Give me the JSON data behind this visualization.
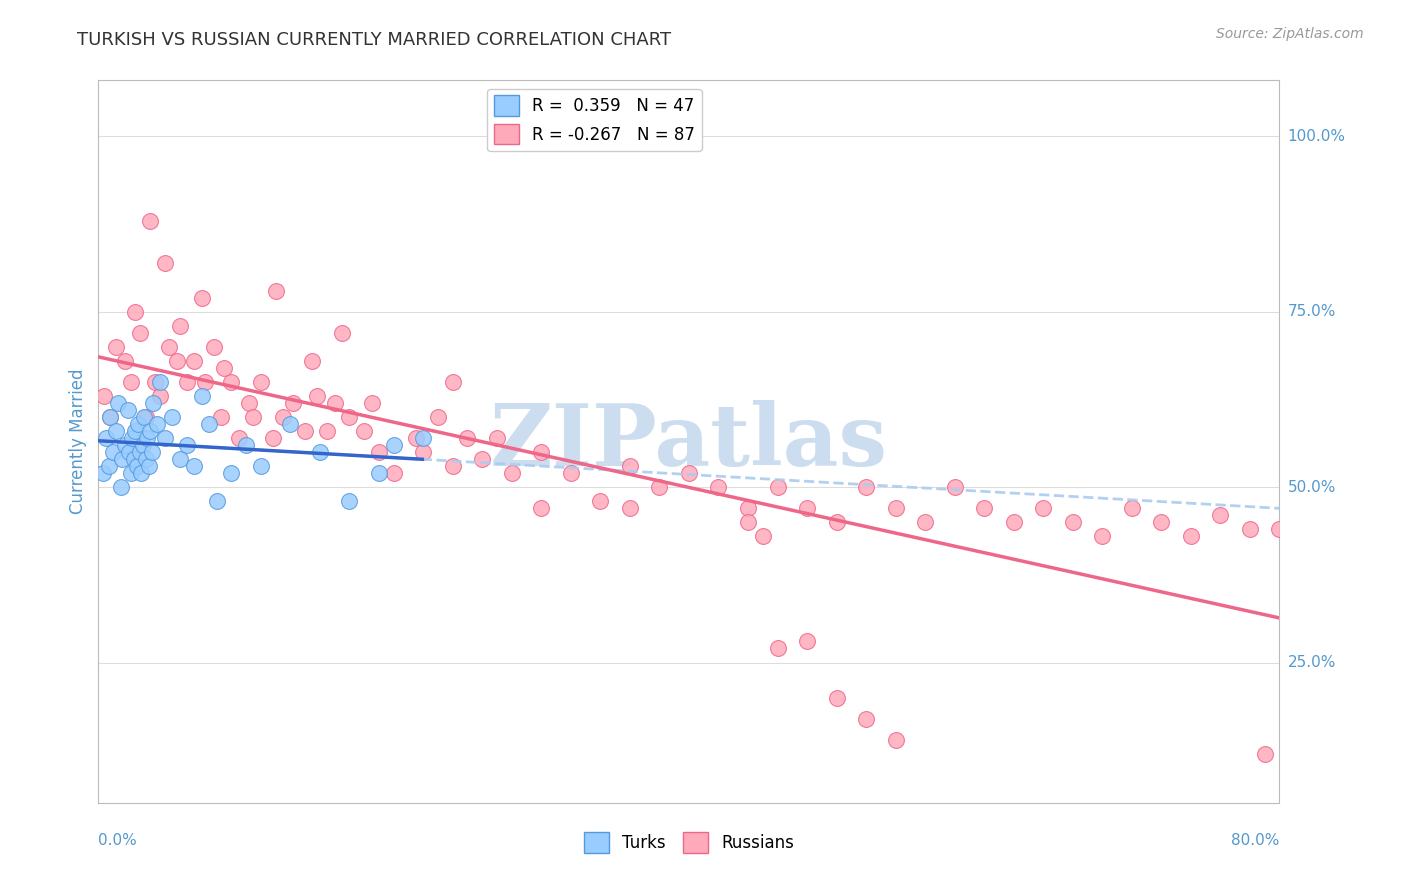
{
  "title": "TURKISH VS RUSSIAN CURRENTLY MARRIED CORRELATION CHART",
  "source": "Source: ZipAtlas.com",
  "ylabel": "Currently Married",
  "xmin": 0.0,
  "xmax": 80.0,
  "ymin": 5.0,
  "ymax": 108.0,
  "ytick_vals": [
    25.0,
    50.0,
    75.0,
    100.0
  ],
  "ytick_labels": [
    "25.0%",
    "50.0%",
    "75.0%",
    "100.0%"
  ],
  "legend_blue_text": "R =  0.359   N = 47",
  "legend_pink_text": "R = -0.267   N = 87",
  "legend_label_blue": "Turks",
  "legend_label_pink": "Russians",
  "watermark": "ZIPatlas",
  "watermark_color": "#ccddf0",
  "background_color": "#ffffff",
  "grid_color": "#dddddd",
  "blue_dot_color": "#99ccff",
  "blue_dot_edge": "#5599dd",
  "pink_dot_color": "#ffaabb",
  "pink_dot_edge": "#ee6688",
  "blue_line_color": "#3366cc",
  "pink_line_color": "#ee6688",
  "dashed_line_color": "#aaccee",
  "axis_color": "#5599cc",
  "title_color": "#333333",
  "source_color": "#999999",
  "turks_x": [
    0.3,
    0.5,
    0.7,
    0.8,
    1.0,
    1.2,
    1.3,
    1.5,
    1.6,
    1.8,
    2.0,
    2.1,
    2.2,
    2.3,
    2.4,
    2.5,
    2.6,
    2.7,
    2.8,
    2.9,
    3.0,
    3.1,
    3.2,
    3.3,
    3.4,
    3.5,
    3.6,
    3.7,
    4.0,
    4.2,
    4.5,
    5.0,
    5.5,
    6.0,
    6.5,
    7.0,
    7.5,
    8.0,
    9.0,
    10.0,
    11.0,
    13.0,
    15.0,
    17.0,
    19.0,
    20.0,
    22.0
  ],
  "turks_y": [
    52,
    57,
    53,
    60,
    55,
    58,
    62,
    50,
    54,
    56,
    61,
    55,
    52,
    57,
    54,
    58,
    53,
    59,
    55,
    52,
    56,
    60,
    54,
    57,
    53,
    58,
    55,
    62,
    59,
    65,
    57,
    60,
    54,
    56,
    53,
    63,
    59,
    48,
    52,
    56,
    53,
    59,
    55,
    48,
    52,
    56,
    57
  ],
  "russians_x": [
    0.4,
    0.8,
    1.2,
    1.8,
    2.2,
    2.8,
    3.2,
    3.8,
    4.2,
    4.8,
    5.3,
    6.0,
    6.5,
    7.2,
    7.8,
    8.3,
    9.0,
    9.5,
    10.2,
    11.0,
    11.8,
    12.5,
    13.2,
    14.0,
    14.8,
    15.5,
    16.0,
    17.0,
    18.0,
    19.0,
    20.0,
    21.5,
    22.0,
    23.0,
    24.0,
    25.0,
    26.0,
    27.0,
    28.0,
    30.0,
    32.0,
    34.0,
    36.0,
    38.0,
    40.0,
    42.0,
    44.0,
    46.0,
    48.0,
    50.0,
    52.0,
    54.0,
    56.0,
    58.0,
    60.0,
    62.0,
    64.0,
    66.0,
    68.0,
    70.0,
    72.0,
    74.0,
    76.0,
    78.0,
    80.0,
    2.5,
    3.5,
    4.5,
    5.5,
    7.0,
    8.5,
    10.5,
    12.0,
    14.5,
    16.5,
    18.5,
    24.0,
    30.0,
    36.0,
    44.0,
    50.0,
    52.0,
    54.0,
    79.0,
    45.0,
    46.0,
    48.0
  ],
  "russians_y": [
    63,
    60,
    70,
    68,
    65,
    72,
    60,
    65,
    63,
    70,
    68,
    65,
    68,
    65,
    70,
    60,
    65,
    57,
    62,
    65,
    57,
    60,
    62,
    58,
    63,
    58,
    62,
    60,
    58,
    55,
    52,
    57,
    55,
    60,
    53,
    57,
    54,
    57,
    52,
    55,
    52,
    48,
    53,
    50,
    52,
    50,
    47,
    50,
    47,
    45,
    50,
    47,
    45,
    50,
    47,
    45,
    47,
    45,
    43,
    47,
    45,
    43,
    46,
    44,
    44,
    75,
    88,
    82,
    73,
    77,
    67,
    60,
    78,
    68,
    72,
    62,
    65,
    47,
    47,
    45,
    20,
    17,
    14,
    12,
    43,
    27,
    28
  ]
}
